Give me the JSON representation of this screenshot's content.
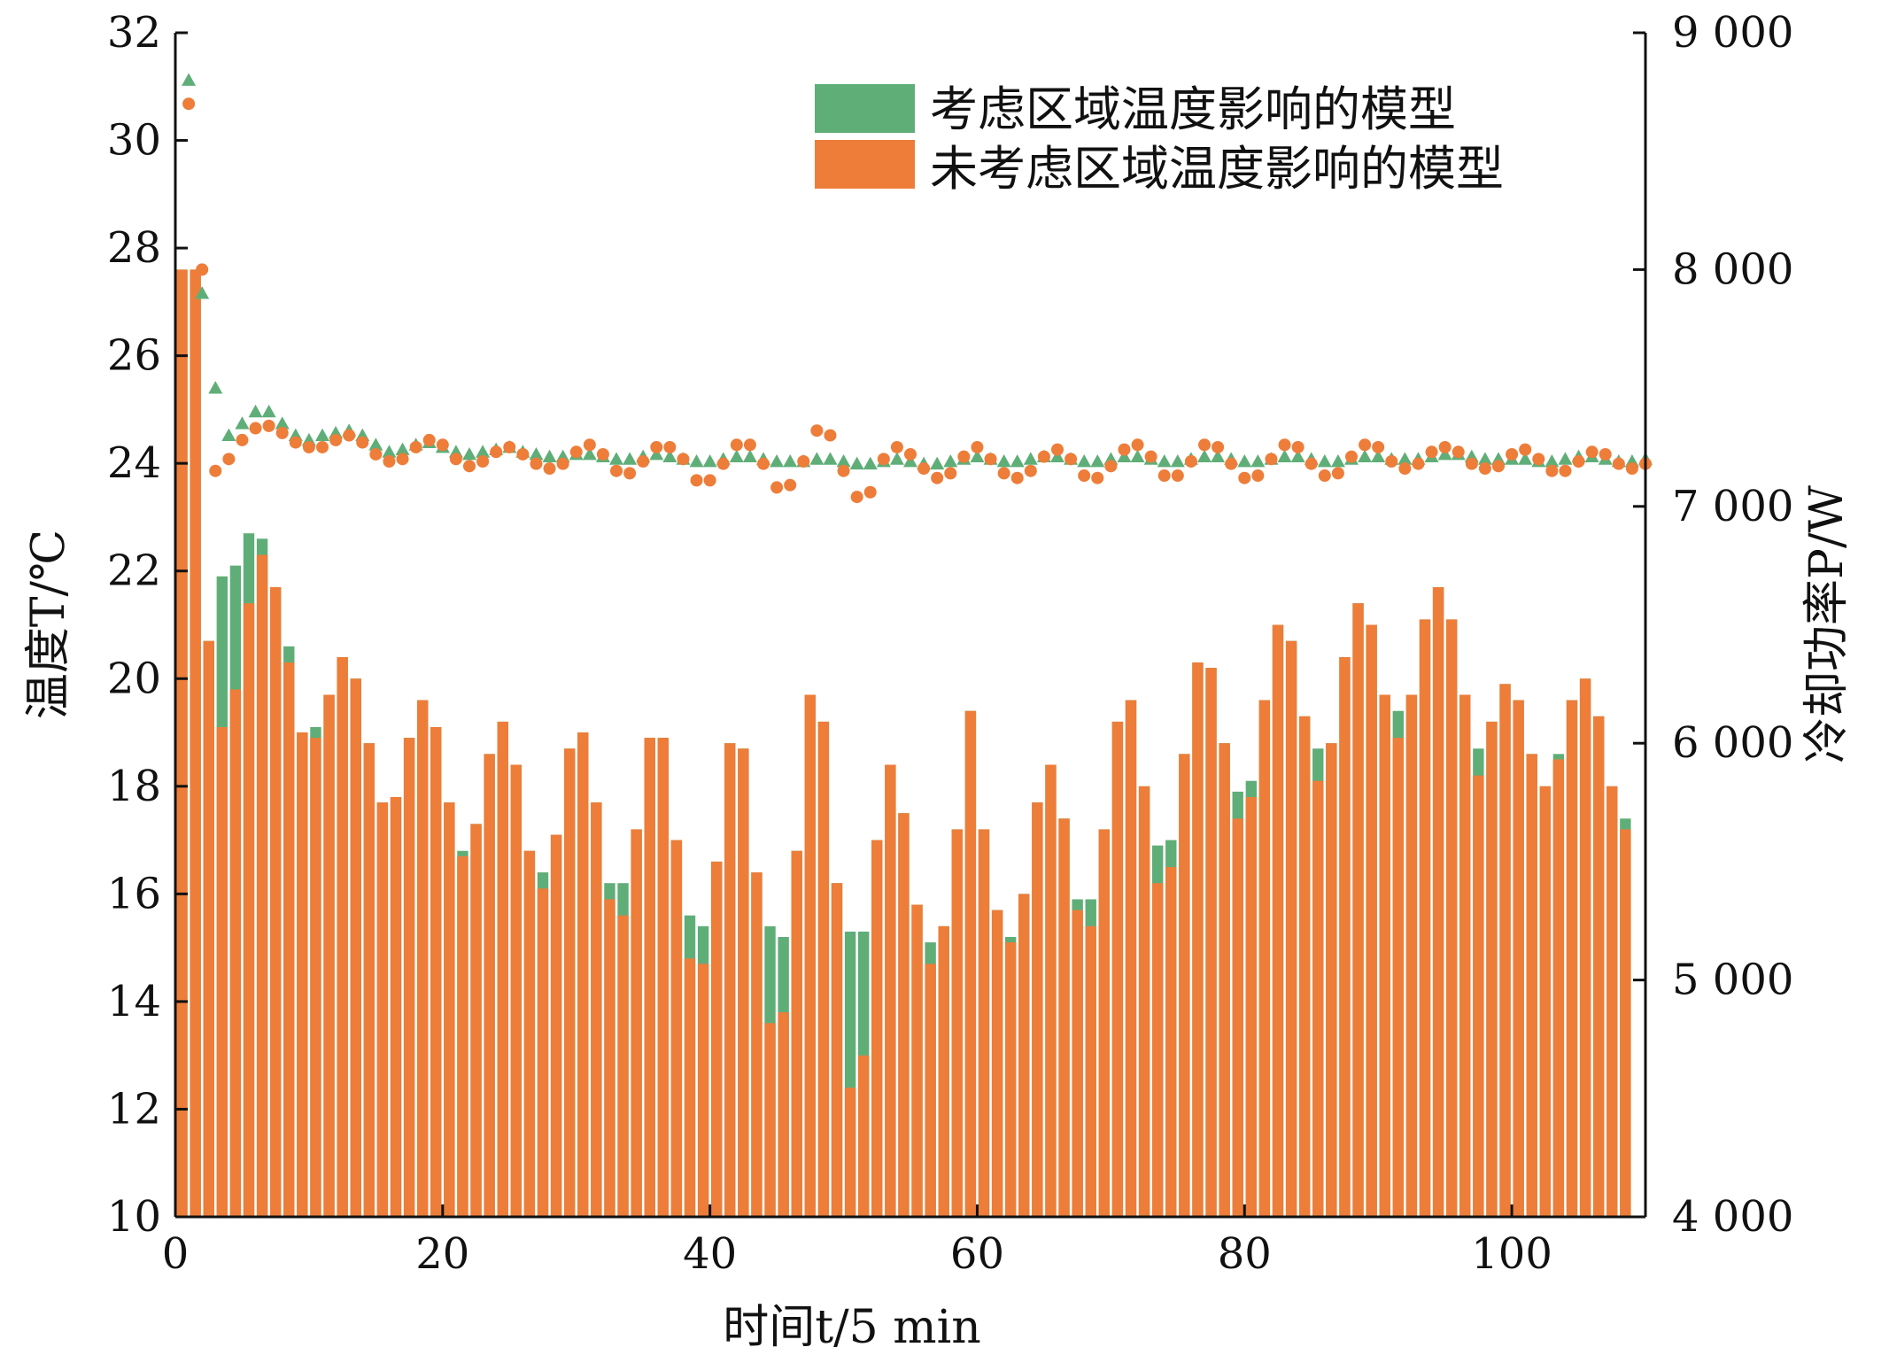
{
  "chart_data": {
    "type": "bar",
    "xlabel": "时间t/5 min",
    "ylabel_left": "温度T/℃",
    "ylabel_right": "冷却功率P/W",
    "xlim": [
      0,
      110
    ],
    "ylim_left": [
      10,
      32
    ],
    "ylim_right": [
      4000,
      9000
    ],
    "x_ticks": [
      "0",
      "20",
      "40",
      "60",
      "80",
      "100"
    ],
    "y_left_ticks": [
      "10",
      "12",
      "14",
      "16",
      "18",
      "20",
      "22",
      "24",
      "26",
      "28",
      "30",
      "32"
    ],
    "y_right_ticks": [
      "4 000",
      "5 000",
      "6 000",
      "7 000",
      "8 000",
      "9 000"
    ],
    "grid": false,
    "legend_position": "top-right",
    "colors": {
      "green": "#5fae78",
      "orange": "#ed7d39"
    },
    "series": [
      {
        "name": "考虑区域温度影响的模型",
        "kind": "bar",
        "axis": "left",
        "values": [
          27.6,
          27.6,
          20.7,
          21.9,
          22.1,
          22.7,
          22.6,
          21.7,
          20.6,
          19.0,
          19.1,
          19.7,
          20.4,
          20.0,
          18.8,
          17.7,
          17.8,
          18.9,
          19.6,
          19.1,
          17.7,
          16.8,
          17.3,
          18.6,
          19.2,
          18.4,
          16.8,
          16.4,
          17.1,
          18.7,
          19.0,
          17.7,
          16.2,
          16.2,
          17.2,
          18.9,
          18.9,
          17.0,
          15.6,
          15.4,
          16.6,
          18.8,
          18.7,
          16.4,
          15.4,
          15.2,
          16.8,
          19.7,
          19.2,
          16.2,
          15.3,
          15.3,
          17.0,
          18.4,
          17.5,
          15.8,
          15.1,
          15.4,
          17.2,
          19.4,
          17.2,
          15.7,
          15.2,
          16.0,
          17.7,
          18.4,
          17.4,
          15.9,
          15.9,
          17.2,
          19.2,
          19.6,
          18.0,
          16.9,
          17.0,
          18.6,
          20.3,
          20.2,
          18.8,
          17.9,
          18.1,
          19.6,
          21.0,
          20.7,
          19.3,
          18.7,
          18.8,
          20.4,
          21.4,
          21.0,
          19.7,
          19.4,
          19.7,
          21.1,
          21.7,
          21.1,
          19.7,
          18.7,
          19.2,
          19.9,
          19.6,
          18.6,
          18.0,
          18.6,
          19.6,
          20.0,
          19.3,
          18.0,
          17.4
        ]
      },
      {
        "name": "未考虑区域温度影响的模型",
        "kind": "bar",
        "axis": "left",
        "values": [
          27.6,
          27.6,
          20.7,
          19.1,
          19.8,
          21.4,
          22.3,
          21.7,
          20.3,
          19.0,
          18.9,
          19.7,
          20.4,
          20.0,
          18.8,
          17.7,
          17.8,
          18.9,
          19.6,
          19.1,
          17.7,
          16.7,
          17.3,
          18.6,
          19.2,
          18.4,
          16.8,
          16.1,
          17.1,
          18.7,
          19.0,
          17.7,
          15.9,
          15.6,
          17.2,
          18.9,
          18.9,
          17.0,
          14.8,
          14.7,
          16.6,
          18.8,
          18.7,
          16.4,
          13.6,
          13.8,
          16.8,
          19.7,
          19.2,
          16.2,
          12.4,
          13.0,
          17.0,
          18.4,
          17.5,
          15.8,
          14.7,
          15.4,
          17.2,
          19.4,
          17.2,
          15.7,
          15.1,
          16.0,
          17.7,
          18.4,
          17.4,
          15.7,
          15.4,
          17.2,
          19.2,
          19.6,
          18.0,
          16.2,
          16.5,
          18.6,
          20.3,
          20.2,
          18.8,
          17.4,
          17.8,
          19.6,
          21.0,
          20.7,
          19.3,
          18.1,
          18.8,
          20.4,
          21.4,
          21.0,
          19.7,
          18.9,
          19.7,
          21.1,
          21.7,
          21.1,
          19.7,
          18.2,
          19.2,
          19.9,
          19.6,
          18.6,
          18.0,
          18.5,
          19.6,
          20.0,
          19.3,
          18.0,
          17.2
        ]
      },
      {
        "name": "考虑区域温度影响的模型",
        "kind": "scatter",
        "marker": "triangle",
        "axis": "right",
        "values": [
          8800,
          7900,
          7500,
          7300,
          7350,
          7400,
          7400,
          7350,
          7300,
          7280,
          7300,
          7310,
          7320,
          7300,
          7260,
          7230,
          7240,
          7260,
          7270,
          7250,
          7230,
          7220,
          7230,
          7240,
          7250,
          7230,
          7220,
          7210,
          7210,
          7220,
          7220,
          7210,
          7200,
          7200,
          7210,
          7220,
          7210,
          7200,
          7190,
          7190,
          7200,
          7210,
          7210,
          7200,
          7190,
          7190,
          7190,
          7200,
          7200,
          7190,
          7180,
          7180,
          7190,
          7200,
          7190,
          7180,
          7180,
          7190,
          7200,
          7210,
          7200,
          7190,
          7190,
          7200,
          7210,
          7210,
          7200,
          7190,
          7190,
          7200,
          7210,
          7210,
          7200,
          7190,
          7190,
          7200,
          7210,
          7210,
          7200,
          7190,
          7190,
          7200,
          7210,
          7210,
          7200,
          7190,
          7190,
          7200,
          7210,
          7210,
          7200,
          7200,
          7200,
          7210,
          7220,
          7220,
          7210,
          7200,
          7200,
          7200,
          7200,
          7190,
          7190,
          7200,
          7210,
          7210,
          7200,
          7190,
          7190,
          7200
        ]
      },
      {
        "name": "未考虑区域温度影响的模型",
        "kind": "scatter",
        "marker": "circle",
        "axis": "right",
        "values": [
          8700,
          8000,
          7150,
          7200,
          7280,
          7330,
          7340,
          7310,
          7270,
          7250,
          7250,
          7280,
          7300,
          7270,
          7220,
          7190,
          7200,
          7250,
          7280,
          7260,
          7200,
          7170,
          7190,
          7230,
          7250,
          7220,
          7180,
          7160,
          7180,
          7230,
          7260,
          7220,
          7150,
          7140,
          7190,
          7250,
          7250,
          7200,
          7110,
          7110,
          7180,
          7260,
          7260,
          7180,
          7080,
          7090,
          7190,
          7320,
          7300,
          7150,
          7040,
          7060,
          7200,
          7250,
          7220,
          7160,
          7120,
          7140,
          7210,
          7250,
          7200,
          7140,
          7120,
          7150,
          7210,
          7240,
          7200,
          7130,
          7120,
          7170,
          7240,
          7260,
          7210,
          7130,
          7130,
          7190,
          7260,
          7250,
          7180,
          7120,
          7130,
          7200,
          7260,
          7250,
          7180,
          7130,
          7140,
          7210,
          7260,
          7250,
          7190,
          7160,
          7180,
          7230,
          7250,
          7230,
          7180,
          7160,
          7170,
          7220,
          7240,
          7200,
          7150,
          7150,
          7190,
          7230,
          7220,
          7180,
          7160,
          7180
        ]
      }
    ]
  }
}
